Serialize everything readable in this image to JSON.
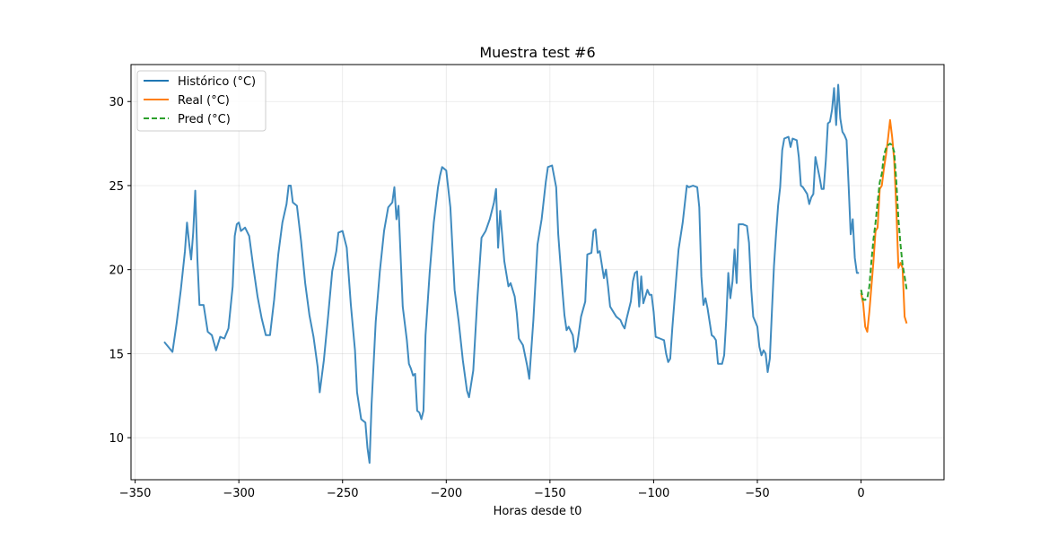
{
  "chart_data": {
    "type": "line",
    "title": "Muestra test #6",
    "xlabel": "Horas desde t0",
    "ylabel": "",
    "xlim": [
      -352,
      40
    ],
    "ylim": [
      7.5,
      32.2
    ],
    "grid": true,
    "legend_placement": "top-left",
    "x_ticks": [
      -350,
      -300,
      -250,
      -200,
      -150,
      -100,
      -50,
      0
    ],
    "x_tick_labels": [
      "−350",
      "−300",
      "−250",
      "−200",
      "−150",
      "−100",
      "−50",
      "0"
    ],
    "y_ticks": [
      10,
      15,
      20,
      25,
      30
    ],
    "y_tick_labels": [
      "10",
      "15",
      "20",
      "25",
      "30"
    ],
    "series": [
      {
        "name": "Histórico (°C)",
        "color": "#1f77b4",
        "style": "solid",
        "points": [
          [
            -336,
            15.7
          ],
          [
            -334,
            15.4
          ],
          [
            -332,
            15.1
          ],
          [
            -330,
            16.8
          ],
          [
            -328,
            18.8
          ],
          [
            -326,
            21.1
          ],
          [
            -325,
            22.8
          ],
          [
            -324,
            21.6
          ],
          [
            -323,
            20.6
          ],
          [
            -322,
            22.2
          ],
          [
            -321,
            24.7
          ],
          [
            -320,
            20.6
          ],
          [
            -319,
            17.9
          ],
          [
            -317,
            17.9
          ],
          [
            -315,
            16.3
          ],
          [
            -313,
            16.1
          ],
          [
            -311,
            15.2
          ],
          [
            -309,
            16.0
          ],
          [
            -307,
            15.9
          ],
          [
            -305,
            16.5
          ],
          [
            -303,
            19.0
          ],
          [
            -302,
            22.0
          ],
          [
            -301,
            22.7
          ],
          [
            -300,
            22.8
          ],
          [
            -299,
            22.3
          ],
          [
            -297,
            22.5
          ],
          [
            -295,
            22.0
          ],
          [
            -293,
            20.1
          ],
          [
            -291,
            18.4
          ],
          [
            -289,
            17.1
          ],
          [
            -287,
            16.1
          ],
          [
            -285,
            16.1
          ],
          [
            -283,
            18.2
          ],
          [
            -281,
            20.9
          ],
          [
            -279,
            22.8
          ],
          [
            -277,
            23.9
          ],
          [
            -276,
            25.0
          ],
          [
            -275,
            25.0
          ],
          [
            -274,
            24.0
          ],
          [
            -272,
            23.8
          ],
          [
            -270,
            21.7
          ],
          [
            -268,
            19.2
          ],
          [
            -266,
            17.3
          ],
          [
            -264,
            16.0
          ],
          [
            -262,
            14.2
          ],
          [
            -261,
            12.7
          ],
          [
            -259,
            14.6
          ],
          [
            -257,
            17.2
          ],
          [
            -255,
            19.9
          ],
          [
            -253,
            21.1
          ],
          [
            -252,
            22.2
          ],
          [
            -250,
            22.3
          ],
          [
            -248,
            21.3
          ],
          [
            -246,
            17.9
          ],
          [
            -244,
            15.2
          ],
          [
            -243,
            12.7
          ],
          [
            -241,
            11.1
          ],
          [
            -239,
            10.9
          ],
          [
            -238,
            9.4
          ],
          [
            -237,
            8.5
          ],
          [
            -236,
            12.0
          ],
          [
            -234,
            16.9
          ],
          [
            -232,
            19.9
          ],
          [
            -230,
            22.3
          ],
          [
            -228,
            23.7
          ],
          [
            -226,
            24.0
          ],
          [
            -225,
            24.9
          ],
          [
            -224,
            23.0
          ],
          [
            -223,
            23.8
          ],
          [
            -221,
            17.8
          ],
          [
            -219,
            15.8
          ],
          [
            -218,
            14.4
          ],
          [
            -217,
            14.1
          ],
          [
            -216,
            13.7
          ],
          [
            -215,
            13.8
          ],
          [
            -214,
            11.6
          ],
          [
            -213,
            11.5
          ],
          [
            -212,
            11.1
          ],
          [
            -211,
            11.6
          ],
          [
            -210,
            16.1
          ],
          [
            -208,
            19.8
          ],
          [
            -206,
            22.8
          ],
          [
            -204,
            24.9
          ],
          [
            -203,
            25.6
          ],
          [
            -202,
            26.1
          ],
          [
            -200,
            25.9
          ],
          [
            -198,
            23.7
          ],
          [
            -196,
            18.8
          ],
          [
            -194,
            16.9
          ],
          [
            -192,
            14.6
          ],
          [
            -190,
            12.8
          ],
          [
            -189,
            12.4
          ],
          [
            -187,
            14.0
          ],
          [
            -185,
            18.3
          ],
          [
            -183,
            21.9
          ],
          [
            -181,
            22.3
          ],
          [
            -179,
            23.0
          ],
          [
            -177,
            24.0
          ],
          [
            -176,
            24.8
          ],
          [
            -175,
            21.3
          ],
          [
            -174,
            23.5
          ],
          [
            -172,
            20.5
          ],
          [
            -170,
            19.0
          ],
          [
            -169,
            19.2
          ],
          [
            -167,
            18.4
          ],
          [
            -166,
            17.4
          ],
          [
            -165,
            15.9
          ],
          [
            -163,
            15.5
          ],
          [
            -161,
            14.3
          ],
          [
            -160,
            13.5
          ],
          [
            -158,
            17.0
          ],
          [
            -156,
            21.5
          ],
          [
            -154,
            23.0
          ],
          [
            -152,
            25.2
          ],
          [
            -151,
            26.1
          ],
          [
            -149,
            26.2
          ],
          [
            -147,
            24.9
          ],
          [
            -146,
            22.1
          ],
          [
            -144,
            18.8
          ],
          [
            -143,
            17.3
          ],
          [
            -142,
            16.4
          ],
          [
            -141,
            16.6
          ],
          [
            -139,
            16.1
          ],
          [
            -138,
            15.1
          ],
          [
            -137,
            15.4
          ],
          [
            -135,
            17.2
          ],
          [
            -133,
            18.1
          ],
          [
            -132,
            20.9
          ],
          [
            -130,
            21.0
          ],
          [
            -129,
            22.3
          ],
          [
            -128,
            22.4
          ],
          [
            -127,
            21.0
          ],
          [
            -126,
            21.1
          ],
          [
            -124,
            19.5
          ],
          [
            -123,
            20.0
          ],
          [
            -122,
            19.0
          ],
          [
            -121,
            17.8
          ],
          [
            -120,
            17.6
          ],
          [
            -118,
            17.2
          ],
          [
            -116,
            17.0
          ],
          [
            -115,
            16.7
          ],
          [
            -114,
            16.5
          ],
          [
            -113,
            17.1
          ],
          [
            -111,
            18.1
          ],
          [
            -110,
            19.3
          ],
          [
            -109,
            19.8
          ],
          [
            -108,
            19.9
          ],
          [
            -107,
            17.8
          ],
          [
            -106,
            19.6
          ],
          [
            -105,
            18.0
          ],
          [
            -103,
            18.8
          ],
          [
            -102,
            18.5
          ],
          [
            -101,
            18.5
          ],
          [
            -100,
            17.5
          ],
          [
            -99,
            16.0
          ],
          [
            -97,
            15.9
          ],
          [
            -95,
            15.8
          ],
          [
            -94,
            15.0
          ],
          [
            -93,
            14.5
          ],
          [
            -92,
            14.7
          ],
          [
            -91,
            16.5
          ],
          [
            -89,
            19.7
          ],
          [
            -88,
            21.2
          ],
          [
            -86,
            22.8
          ],
          [
            -85,
            23.9
          ],
          [
            -84,
            25.0
          ],
          [
            -83,
            24.9
          ],
          [
            -81,
            25.0
          ],
          [
            -79,
            24.9
          ],
          [
            -78,
            23.7
          ],
          [
            -77,
            19.6
          ],
          [
            -76,
            17.9
          ],
          [
            -75,
            18.3
          ],
          [
            -74,
            17.7
          ],
          [
            -72,
            16.1
          ],
          [
            -71,
            16.0
          ],
          [
            -70,
            15.8
          ],
          [
            -69,
            14.4
          ],
          [
            -67,
            14.4
          ],
          [
            -66,
            14.9
          ],
          [
            -65,
            17.0
          ],
          [
            -64,
            19.8
          ],
          [
            -63,
            18.3
          ],
          [
            -62,
            19.3
          ],
          [
            -61,
            21.2
          ],
          [
            -60,
            19.2
          ],
          [
            -59,
            22.7
          ],
          [
            -57,
            22.7
          ],
          [
            -55,
            22.6
          ],
          [
            -54,
            21.6
          ],
          [
            -53,
            18.9
          ],
          [
            -52,
            17.2
          ],
          [
            -51,
            16.9
          ],
          [
            -50,
            16.6
          ],
          [
            -49,
            15.4
          ],
          [
            -48,
            14.9
          ],
          [
            -47,
            15.2
          ],
          [
            -46,
            15.0
          ],
          [
            -45,
            13.9
          ],
          [
            -44,
            14.7
          ],
          [
            -43,
            17.5
          ],
          [
            -42,
            20.2
          ],
          [
            -41,
            22.1
          ],
          [
            -40,
            23.8
          ],
          [
            -39,
            24.9
          ],
          [
            -38,
            27.1
          ],
          [
            -37,
            27.8
          ],
          [
            -35,
            27.9
          ],
          [
            -34,
            27.3
          ],
          [
            -33,
            27.8
          ],
          [
            -31,
            27.7
          ],
          [
            -30,
            26.7
          ],
          [
            -29,
            25.0
          ],
          [
            -28,
            24.9
          ],
          [
            -26,
            24.5
          ],
          [
            -25,
            23.9
          ],
          [
            -24,
            24.3
          ],
          [
            -23,
            24.5
          ],
          [
            -22,
            26.7
          ],
          [
            -21,
            26.1
          ],
          [
            -20,
            25.5
          ],
          [
            -19,
            24.8
          ],
          [
            -18,
            24.8
          ],
          [
            -17,
            26.5
          ],
          [
            -16,
            28.7
          ],
          [
            -15,
            28.8
          ],
          [
            -14,
            29.5
          ],
          [
            -13,
            30.8
          ],
          [
            -12,
            28.6
          ],
          [
            -11,
            31.0
          ],
          [
            -10,
            29.0
          ],
          [
            -9,
            28.2
          ],
          [
            -8,
            28.0
          ],
          [
            -7,
            27.7
          ],
          [
            -6,
            25.0
          ],
          [
            -5,
            22.1
          ],
          [
            -4,
            23.0
          ],
          [
            -3,
            20.7
          ],
          [
            -2,
            19.8
          ],
          [
            -1,
            19.8
          ]
        ]
      },
      {
        "name": "Real (°C)",
        "color": "#ff7f0e",
        "style": "solid",
        "points": [
          [
            0,
            18.6
          ],
          [
            1,
            18.0
          ],
          [
            2,
            16.6
          ],
          [
            3,
            16.3
          ],
          [
            4,
            17.5
          ],
          [
            5,
            19.0
          ],
          [
            6,
            20.5
          ],
          [
            7,
            22.3
          ],
          [
            8,
            22.5
          ],
          [
            9,
            24.8
          ],
          [
            10,
            25.0
          ],
          [
            11,
            26.0
          ],
          [
            12,
            26.8
          ],
          [
            13,
            27.8
          ],
          [
            14,
            28.9
          ],
          [
            15,
            27.9
          ],
          [
            16,
            26.5
          ],
          [
            17,
            23.7
          ],
          [
            18,
            20.1
          ],
          [
            19,
            20.4
          ],
          [
            20,
            20.1
          ],
          [
            21,
            17.2
          ],
          [
            22,
            16.8
          ]
        ]
      },
      {
        "name": "Pred (°C)",
        "color": "#2ca02c",
        "style": "dashed",
        "points": [
          [
            0,
            18.8
          ],
          [
            1,
            18.2
          ],
          [
            2,
            18.2
          ],
          [
            3,
            18.3
          ],
          [
            4,
            19.0
          ],
          [
            5,
            20.5
          ],
          [
            6,
            21.8
          ],
          [
            7,
            22.8
          ],
          [
            8,
            24.0
          ],
          [
            9,
            25.2
          ],
          [
            10,
            25.7
          ],
          [
            11,
            26.8
          ],
          [
            12,
            27.2
          ],
          [
            13,
            27.4
          ],
          [
            14,
            27.5
          ],
          [
            15,
            27.4
          ],
          [
            16,
            27.0
          ],
          [
            17,
            25.3
          ],
          [
            18,
            23.0
          ],
          [
            19,
            21.5
          ],
          [
            20,
            20.3
          ],
          [
            21,
            19.6
          ],
          [
            22,
            18.8
          ]
        ]
      }
    ]
  }
}
